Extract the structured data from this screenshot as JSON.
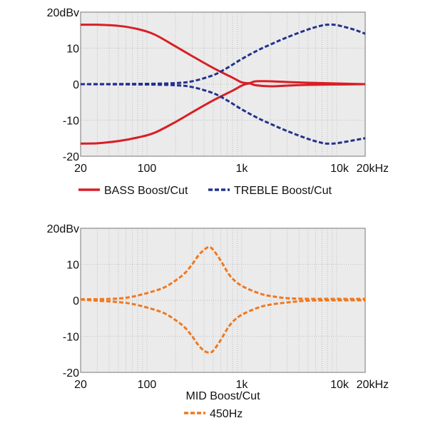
{
  "colors": {
    "background": "#ebebeb",
    "grid": "#b4b4b4",
    "bass": "#d81f26",
    "treble": "#23318c",
    "mid": "#f0781e"
  },
  "chart_data": [
    {
      "type": "line",
      "x_scale": "log",
      "xlim": [
        20,
        20000
      ],
      "ylim": [
        -20,
        20
      ],
      "x_ticks": [
        {
          "value": 20,
          "label": "20"
        },
        {
          "value": 100,
          "label": "100"
        },
        {
          "value": 1000,
          "label": "1k"
        },
        {
          "value": 10000,
          "label": "10k"
        },
        {
          "value": 20000,
          "label": "20kHz"
        }
      ],
      "y_ticks": [
        {
          "value": 20,
          "label": "20dBv"
        },
        {
          "value": 10,
          "label": "10"
        },
        {
          "value": 0,
          "label": "0"
        },
        {
          "value": -10,
          "label": "-10"
        },
        {
          "value": -20,
          "label": "-20"
        }
      ],
      "grid": true,
      "legend_position": "bottom",
      "title": "",
      "series": [
        {
          "name": "BASS Boost/Cut",
          "style": "solid",
          "color": "#d81f26",
          "curves": [
            {
              "x": [
                20,
                30,
                50,
                80,
                120,
                200,
                300,
                500,
                800,
                1000,
                1200,
                1400,
                2000,
                3000,
                5000,
                10000,
                20000
              ],
              "y": [
                16.5,
                16.5,
                16.2,
                15.3,
                13.8,
                10.5,
                7.8,
                4.5,
                1.8,
                0.5,
                0.3,
                0.8,
                0.8,
                0.6,
                0.4,
                0.2,
                0
              ]
            },
            {
              "x": [
                20,
                30,
                50,
                80,
                120,
                200,
                300,
                500,
                800,
                1000,
                1200,
                1400,
                2000,
                3000,
                5000,
                10000,
                20000
              ],
              "y": [
                -16.5,
                -16.4,
                -15.8,
                -14.8,
                -13.5,
                -10.5,
                -7.8,
                -4.5,
                -1.8,
                -0.4,
                0.2,
                -0.3,
                -0.6,
                -0.4,
                -0.2,
                -0.1,
                0
              ]
            }
          ]
        },
        {
          "name": "TREBLE Boost/Cut",
          "style": "dashed",
          "color": "#23318c",
          "curves": [
            {
              "x": [
                20,
                100,
                200,
                300,
                500,
                700,
                1000,
                1500,
                2000,
                3000,
                5000,
                7000,
                8000,
                10000,
                15000,
                20000
              ],
              "y": [
                0,
                0.1,
                0.3,
                0.8,
                2.5,
                4.5,
                7,
                9.5,
                11,
                13,
                15.2,
                16.3,
                16.5,
                16.4,
                15.2,
                14
              ]
            },
            {
              "x": [
                20,
                100,
                200,
                300,
                500,
                700,
                1000,
                1500,
                2000,
                3000,
                5000,
                7000,
                8000,
                10000,
                15000,
                20000
              ],
              "y": [
                0,
                -0.1,
                -0.3,
                -0.8,
                -2.5,
                -4.5,
                -7,
                -9.5,
                -11,
                -13,
                -15.2,
                -16.3,
                -16.5,
                -16.4,
                -15.6,
                -15
              ]
            }
          ]
        }
      ]
    },
    {
      "type": "line",
      "x_scale": "log",
      "xlim": [
        20,
        20000
      ],
      "ylim": [
        -20,
        20
      ],
      "x_ticks": [
        {
          "value": 20,
          "label": "20"
        },
        {
          "value": 100,
          "label": "100"
        },
        {
          "value": 1000,
          "label": "1k"
        },
        {
          "value": 10000,
          "label": "10k"
        },
        {
          "value": 20000,
          "label": "20kHz"
        }
      ],
      "y_ticks": [
        {
          "value": 20,
          "label": "20dBv"
        },
        {
          "value": 10,
          "label": "10"
        },
        {
          "value": 0,
          "label": "0"
        },
        {
          "value": -10,
          "label": "-10"
        },
        {
          "value": -20,
          "label": "-20"
        }
      ],
      "grid": true,
      "legend_position": "bottom",
      "title": "MID Boost/Cut",
      "series": [
        {
          "name": "450Hz",
          "style": "dashed",
          "color": "#f0781e",
          "curves": [
            {
              "x": [
                20,
                30,
                50,
                70,
                100,
                150,
                200,
                250,
                300,
                350,
                400,
                450,
                500,
                600,
                700,
                800,
                1000,
                1500,
                2000,
                3000,
                5000,
                10000,
                20000
              ],
              "y": [
                0.3,
                0.3,
                0.5,
                1,
                2,
                3.5,
                5.5,
                7.5,
                10,
                12.5,
                14,
                14.8,
                14,
                11,
                8,
                6,
                4,
                2,
                1.2,
                0.6,
                0.4,
                0.4,
                0.4
              ]
            },
            {
              "x": [
                20,
                30,
                50,
                70,
                100,
                150,
                200,
                250,
                300,
                350,
                400,
                450,
                500,
                600,
                700,
                800,
                1000,
                1500,
                2000,
                3000,
                5000,
                10000,
                20000
              ],
              "y": [
                0.2,
                -0.1,
                -0.5,
                -1,
                -2,
                -3.5,
                -5.5,
                -7.5,
                -10,
                -12.5,
                -14,
                -14.5,
                -14,
                -11,
                -8,
                -6,
                -4,
                -2,
                -1.2,
                -0.6,
                -0.1,
                0,
                0
              ]
            }
          ]
        }
      ]
    }
  ]
}
